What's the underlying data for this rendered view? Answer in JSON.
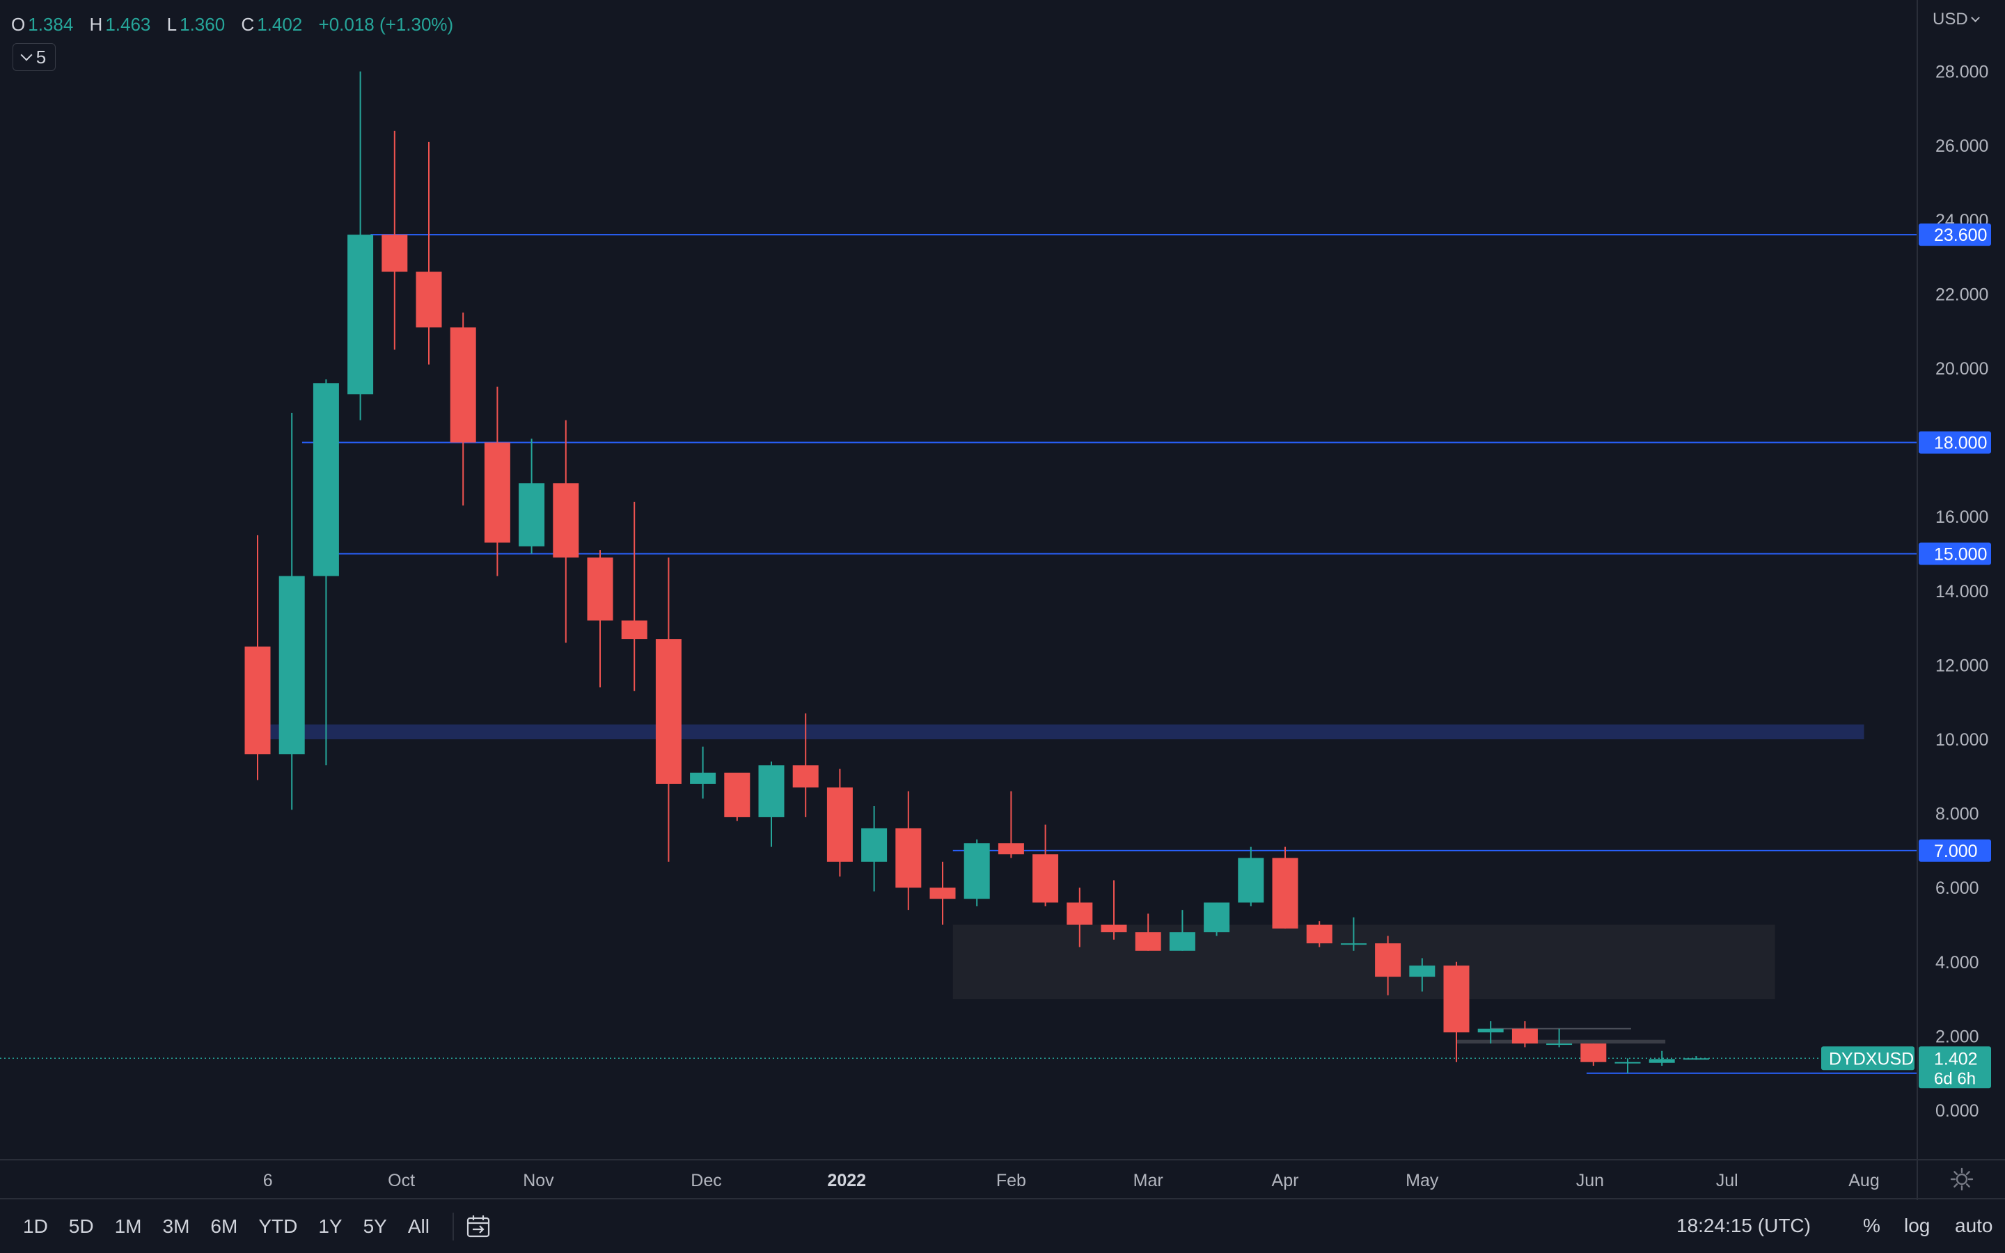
{
  "header": {
    "ohlc": [
      {
        "key": "O",
        "value": "1.384"
      },
      {
        "key": "H",
        "value": "1.463"
      },
      {
        "key": "L",
        "value": "1.360"
      },
      {
        "key": "C",
        "value": "1.402"
      }
    ],
    "change": "+0.018 (+1.30%)",
    "collapse_count": "5",
    "currency": "USD"
  },
  "colors": {
    "background": "#131722",
    "up": "#26a69a",
    "down": "#ef5350",
    "level_line": "#2962ff",
    "level_label_bg": "#2962ff",
    "zone_blue": "#1e2a5a",
    "zone_gray": "#1f222b",
    "axis_text": "#b2b5be",
    "grid_border": "#2a2e39"
  },
  "chart_data": {
    "type": "candlestick",
    "symbol": "DYDXUSD",
    "interval": "weekly",
    "y_axis": {
      "ticks": [
        "0.000",
        "2.000",
        "4.000",
        "6.000",
        "8.000",
        "10.000",
        "12.000",
        "14.000",
        "16.000",
        "18.000",
        "20.000",
        "22.000",
        "24.000",
        "26.000",
        "28.000"
      ],
      "range": [
        -1.2,
        29.0
      ]
    },
    "x_axis": {
      "labels": [
        "6",
        "Oct",
        "Nov",
        "Dec",
        "2022",
        "Feb",
        "Mar",
        "Apr",
        "May",
        "Jun",
        "Jul",
        "Aug"
      ],
      "label_weeks": [
        0.3,
        4.2,
        8.2,
        13.1,
        17.2,
        22.0,
        26.0,
        30.0,
        34.0,
        38.9,
        42.9,
        46.9
      ],
      "bold": [
        "2022"
      ]
    },
    "candles": [
      {
        "o": 12.5,
        "h": 15.5,
        "l": 8.9,
        "c": 9.6
      },
      {
        "o": 9.6,
        "h": 18.8,
        "l": 8.1,
        "c": 14.4
      },
      {
        "o": 14.4,
        "h": 19.7,
        "l": 9.3,
        "c": 19.6
      },
      {
        "o": 19.3,
        "h": 28.0,
        "l": 18.6,
        "c": 23.6
      },
      {
        "o": 23.6,
        "h": 26.4,
        "l": 20.5,
        "c": 22.6
      },
      {
        "o": 22.6,
        "h": 26.1,
        "l": 20.1,
        "c": 21.1
      },
      {
        "o": 21.1,
        "h": 21.5,
        "l": 16.3,
        "c": 18.0
      },
      {
        "o": 18.0,
        "h": 19.5,
        "l": 14.4,
        "c": 15.3
      },
      {
        "o": 15.2,
        "h": 18.1,
        "l": 15.0,
        "c": 16.9
      },
      {
        "o": 16.9,
        "h": 18.6,
        "l": 12.6,
        "c": 14.9
      },
      {
        "o": 14.9,
        "h": 15.1,
        "l": 11.4,
        "c": 13.2
      },
      {
        "o": 13.2,
        "h": 16.4,
        "l": 11.3,
        "c": 12.7
      },
      {
        "o": 12.7,
        "h": 14.9,
        "l": 6.7,
        "c": 8.8
      },
      {
        "o": 8.8,
        "h": 9.8,
        "l": 8.4,
        "c": 9.1
      },
      {
        "o": 9.1,
        "h": 9.1,
        "l": 7.8,
        "c": 7.9
      },
      {
        "o": 7.9,
        "h": 9.4,
        "l": 7.1,
        "c": 9.3
      },
      {
        "o": 9.3,
        "h": 10.7,
        "l": 7.9,
        "c": 8.7
      },
      {
        "o": 8.7,
        "h": 9.2,
        "l": 6.3,
        "c": 6.7
      },
      {
        "o": 6.7,
        "h": 8.2,
        "l": 5.9,
        "c": 7.6
      },
      {
        "o": 7.6,
        "h": 8.6,
        "l": 5.4,
        "c": 6.0
      },
      {
        "o": 6.0,
        "h": 6.7,
        "l": 5.0,
        "c": 5.7
      },
      {
        "o": 5.7,
        "h": 7.3,
        "l": 5.5,
        "c": 7.2
      },
      {
        "o": 7.2,
        "h": 8.6,
        "l": 6.8,
        "c": 6.9
      },
      {
        "o": 6.9,
        "h": 7.7,
        "l": 5.5,
        "c": 5.6
      },
      {
        "o": 5.6,
        "h": 6.0,
        "l": 4.4,
        "c": 5.0
      },
      {
        "o": 5.0,
        "h": 6.2,
        "l": 4.6,
        "c": 4.8
      },
      {
        "o": 4.8,
        "h": 5.3,
        "l": 4.3,
        "c": 4.3
      },
      {
        "o": 4.3,
        "h": 5.4,
        "l": 4.3,
        "c": 4.8
      },
      {
        "o": 4.8,
        "h": 5.6,
        "l": 4.7,
        "c": 5.6
      },
      {
        "o": 5.6,
        "h": 7.1,
        "l": 5.5,
        "c": 6.8
      },
      {
        "o": 6.8,
        "h": 7.1,
        "l": 4.9,
        "c": 4.9
      },
      {
        "o": 5.0,
        "h": 5.1,
        "l": 4.4,
        "c": 4.5
      },
      {
        "o": 4.5,
        "h": 5.2,
        "l": 4.3,
        "c": 4.5
      },
      {
        "o": 4.5,
        "h": 4.7,
        "l": 3.1,
        "c": 3.6
      },
      {
        "o": 3.6,
        "h": 4.1,
        "l": 3.2,
        "c": 3.9
      },
      {
        "o": 3.9,
        "h": 4.0,
        "l": 1.3,
        "c": 2.1
      },
      {
        "o": 2.1,
        "h": 2.4,
        "l": 1.8,
        "c": 2.2
      },
      {
        "o": 2.2,
        "h": 2.4,
        "l": 1.7,
        "c": 1.8
      },
      {
        "o": 1.8,
        "h": 2.2,
        "l": 1.7,
        "c": 1.8
      },
      {
        "o": 1.8,
        "h": 1.8,
        "l": 1.2,
        "c": 1.3
      },
      {
        "o": 1.3,
        "h": 1.4,
        "l": 1.0,
        "c": 1.3
      },
      {
        "o": 1.28,
        "h": 1.6,
        "l": 1.2,
        "c": 1.38
      },
      {
        "o": 1.384,
        "h": 1.463,
        "l": 1.36,
        "c": 1.402
      }
    ],
    "levels": [
      {
        "value": 23.6,
        "label": "23.600",
        "start_week": 3.3
      },
      {
        "value": 18.0,
        "label": "18.000",
        "start_week": 1.3
      },
      {
        "value": 15.0,
        "label": "15.000",
        "start_week": 2.3
      },
      {
        "value": 7.0,
        "label": "7.000",
        "start_week": 20.3
      },
      {
        "value": 1.0,
        "label": "1.000",
        "start_week": 38.8
      }
    ],
    "zones": [
      {
        "kind": "blue",
        "from": 10.0,
        "to": 10.4,
        "start_week": -0.2,
        "end_week": 46.9
      },
      {
        "kind": "gray",
        "from": 3.0,
        "to": 5.0,
        "start_week": 20.3,
        "end_week": 44.3
      },
      {
        "kind": "gray-thin",
        "from": 1.8,
        "to": 1.9,
        "start_week": 35.0,
        "end_week": 41.1
      },
      {
        "kind": "gray-line",
        "from": 2.2,
        "to": 2.2,
        "start_week": 36.0,
        "end_week": 40.1
      }
    ],
    "last_price": {
      "symbol": "DYDXUSD",
      "value": "1.402",
      "countdown": "6d 6h"
    }
  },
  "toolbar": {
    "ranges": [
      "1D",
      "5D",
      "1M",
      "3M",
      "6M",
      "YTD",
      "1Y",
      "5Y",
      "All"
    ],
    "clock": "18:24:15 (UTC)",
    "percent": "%",
    "log": "log",
    "auto": "auto"
  }
}
